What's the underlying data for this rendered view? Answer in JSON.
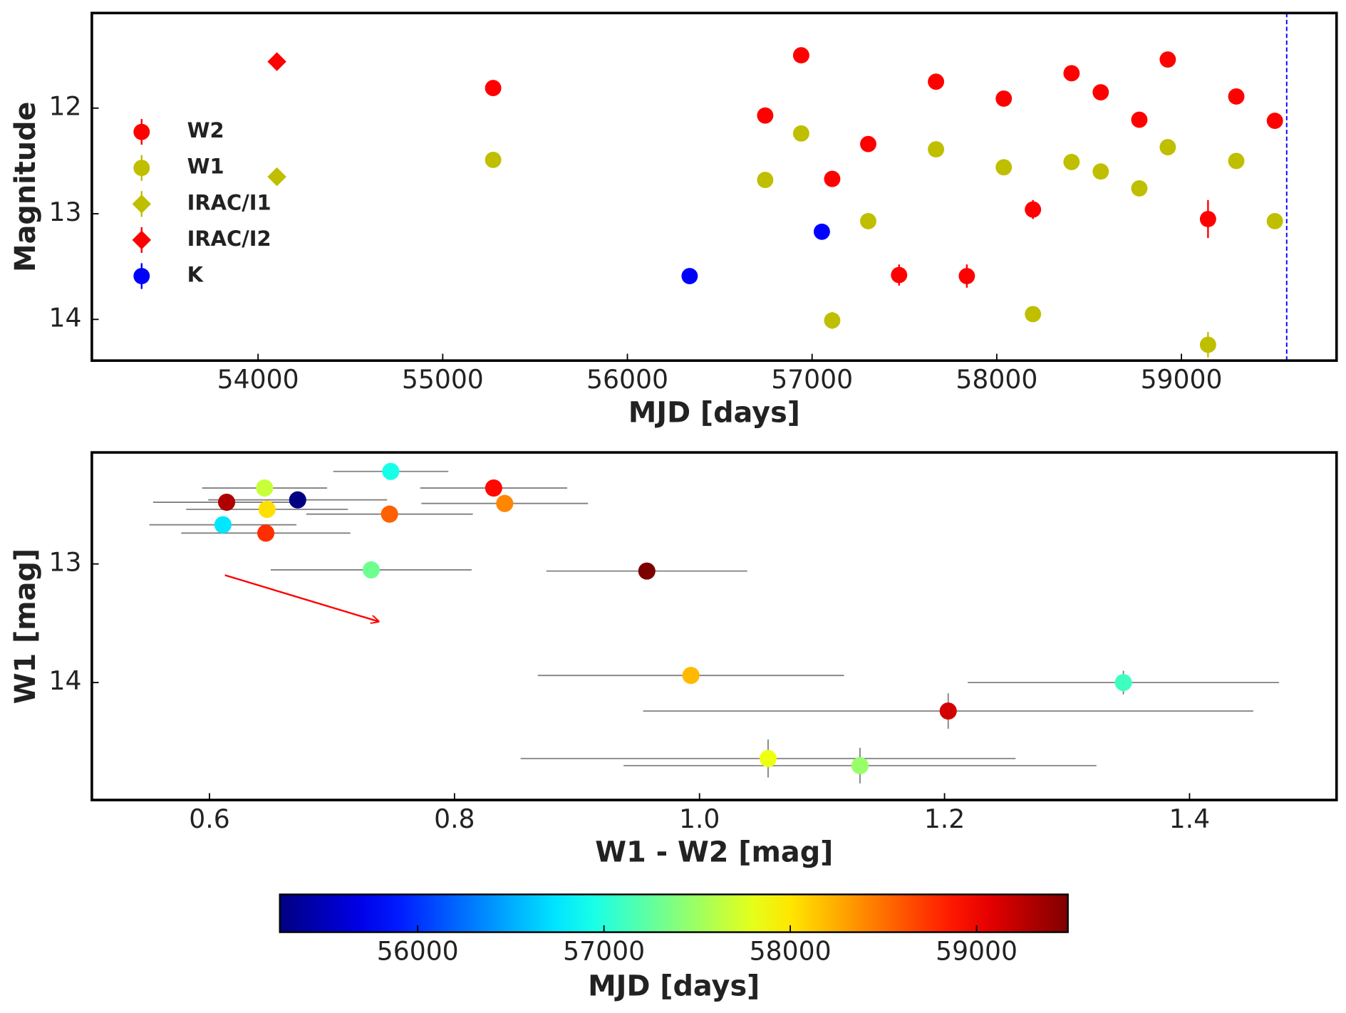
{
  "chart_data": [
    {
      "type": "scatter",
      "xlabel": "MJD [days]",
      "ylabel": "Magnitude",
      "xlim": [
        53100,
        59840
      ],
      "ylim": [
        11.1,
        14.39
      ],
      "invert_y": true,
      "xticks": [
        54000,
        55000,
        56000,
        57000,
        58000,
        59000
      ],
      "yticks": [
        12,
        13,
        14
      ],
      "vlines": [
        59570
      ],
      "vline_color": "#0000ff",
      "legend": "center left",
      "series": [
        {
          "name": "W2",
          "color": "#ff0000",
          "marker": "circle",
          "x": [
            55273,
            56746,
            56941,
            57109,
            57304,
            57471,
            57671,
            57838,
            58038,
            58196,
            58405,
            58563,
            58772,
            58926,
            59144,
            59297,
            59506
          ],
          "values": [
            11.81,
            12.07,
            11.5,
            12.67,
            12.34,
            13.58,
            11.75,
            13.59,
            11.91,
            12.96,
            11.67,
            11.85,
            12.11,
            11.54,
            13.05,
            11.89,
            12.12
          ],
          "errors": [
            0.03,
            0.03,
            0.03,
            0.04,
            0.04,
            0.1,
            0.03,
            0.11,
            0.03,
            0.09,
            0.03,
            0.03,
            0.03,
            0.03,
            0.18,
            0.03,
            0.03
          ]
        },
        {
          "name": "W1",
          "color": "#bfbf00",
          "marker": "circle",
          "x": [
            55273,
            56746,
            56941,
            57109,
            57304,
            57671,
            58038,
            58196,
            58405,
            58563,
            58772,
            58926,
            59144,
            59297,
            59506
          ],
          "values": [
            12.49,
            12.68,
            12.24,
            14.01,
            13.07,
            12.39,
            12.56,
            13.95,
            12.51,
            12.6,
            12.76,
            12.37,
            14.24,
            12.5,
            13.07
          ],
          "errors": [
            0.02,
            0.02,
            0.02,
            0.08,
            0.03,
            0.02,
            0.02,
            0.05,
            0.02,
            0.02,
            0.02,
            0.02,
            0.12,
            0.02,
            0.03
          ]
        },
        {
          "name": "IRAC/I1",
          "color": "#bfbf00",
          "marker": "diamond",
          "x": [
            54102
          ],
          "values": [
            12.65
          ],
          "errors": [
            0.02
          ]
        },
        {
          "name": "IRAC/I2",
          "color": "#ff0000",
          "marker": "diamond",
          "x": [
            54102
          ],
          "values": [
            11.56
          ],
          "errors": [
            0.02
          ]
        },
        {
          "name": "K",
          "color": "#0000ff",
          "marker": "circle",
          "x": [
            56337,
            57053
          ],
          "values": [
            13.59,
            13.17
          ],
          "errors": [
            0.02,
            0.02
          ]
        }
      ]
    },
    {
      "type": "scatter",
      "xlabel": "W1 - W2 [mag]",
      "ylabel": "W1 [mag]",
      "xlim": [
        0.504,
        1.52
      ],
      "ylim": [
        12.06,
        14.99
      ],
      "invert_y": true,
      "xticks": [
        0.6,
        0.8,
        {
          "value": 1,
          "label": "1.0"
        },
        1.2,
        1.4
      ],
      "yticks": [
        13,
        14
      ],
      "errorbar_color": "#808080",
      "colormap": "jet",
      "x": [
        0.748,
        0.645,
        0.614,
        0.672,
        0.647,
        0.832,
        0.841,
        0.747,
        0.611,
        0.646,
        0.732,
        0.957,
        0.993,
        1.346,
        1.203,
        1.056,
        1.131
      ],
      "values": [
        12.22,
        12.36,
        12.48,
        12.46,
        12.54,
        12.36,
        12.49,
        12.58,
        12.67,
        12.74,
        13.05,
        13.06,
        13.94,
        14.0,
        14.24,
        14.64,
        14.7
      ],
      "xerr": [
        0.047,
        0.051,
        0.06,
        0.073,
        0.066,
        0.06,
        0.068,
        0.068,
        0.06,
        0.069,
        0.082,
        0.082,
        0.125,
        0.127,
        0.249,
        0.202,
        0.193
      ],
      "yerr": [
        0.02,
        0.02,
        0.02,
        0.02,
        0.02,
        0.02,
        0.02,
        0.02,
        0.02,
        0.02,
        0.02,
        0.02,
        0.05,
        0.1,
        0.15,
        0.16,
        0.15
      ],
      "c": [
        56941,
        57671,
        59297,
        55273,
        58038,
        58926,
        58405,
        58563,
        56746,
        58772,
        57304,
        59506,
        58196,
        57109,
        59144,
        57838,
        57471
      ],
      "colorbar": {
        "label": "MJD [days]",
        "clim": [
          55260,
          59490
        ],
        "ticks": [
          56000,
          57000,
          58000,
          59000
        ]
      }
    }
  ]
}
